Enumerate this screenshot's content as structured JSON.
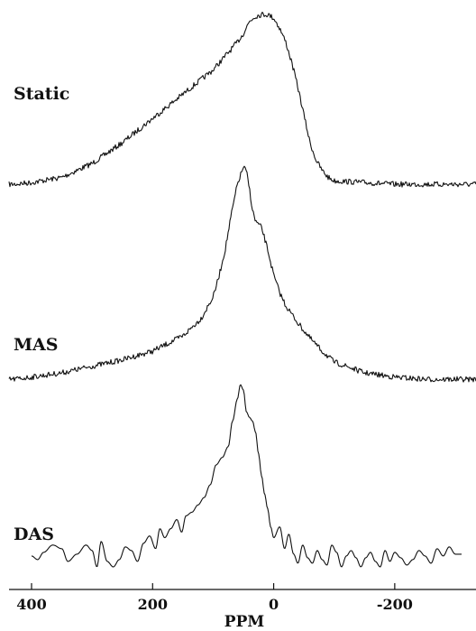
{
  "chart_data": {
    "type": "line",
    "title": "",
    "xlabel": "PPM",
    "ylabel": "",
    "xlim": [
      400,
      -300
    ],
    "x_reversed": true,
    "grid": false,
    "legend": "none",
    "xticks": [
      {
        "value": 400,
        "label": "400"
      },
      {
        "value": 200,
        "label": "200"
      },
      {
        "value": 0,
        "label": "0"
      },
      {
        "value": -200,
        "label": "-200"
      }
    ],
    "series": [
      {
        "name": "Static",
        "x": [
          430,
          400,
          350,
          300,
          250,
          200,
          150,
          100,
          80,
          60,
          50,
          40,
          30,
          20,
          10,
          0,
          -10,
          -20,
          -30,
          -40,
          -50,
          -60,
          -70,
          -80,
          -90,
          -100,
          -150,
          -200,
          -250,
          -300
        ],
        "y": [
          0.02,
          0.03,
          0.06,
          0.14,
          0.26,
          0.4,
          0.54,
          0.68,
          0.76,
          0.84,
          0.89,
          0.96,
          0.99,
          1.0,
          1.0,
          0.98,
          0.92,
          0.84,
          0.72,
          0.58,
          0.42,
          0.26,
          0.16,
          0.1,
          0.06,
          0.04,
          0.03,
          0.02,
          0.02,
          0.02
        ]
      },
      {
        "name": "MAS",
        "x": [
          430,
          400,
          350,
          300,
          250,
          200,
          150,
          120,
          100,
          90,
          80,
          70,
          60,
          50,
          45,
          40,
          35,
          30,
          20,
          10,
          0,
          -10,
          -20,
          -40,
          -60,
          -80,
          -100,
          -150,
          -200,
          -250,
          -300
        ],
        "y": [
          0.02,
          0.03,
          0.05,
          0.08,
          0.11,
          0.15,
          0.22,
          0.3,
          0.4,
          0.5,
          0.62,
          0.78,
          0.92,
          1.0,
          0.98,
          0.9,
          0.8,
          0.75,
          0.72,
          0.62,
          0.5,
          0.42,
          0.36,
          0.28,
          0.21,
          0.15,
          0.1,
          0.05,
          0.03,
          0.02,
          0.02
        ]
      },
      {
        "name": "DAS",
        "x": [
          400,
          390,
          380,
          365,
          350,
          340,
          325,
          310,
          300,
          292,
          285,
          275,
          265,
          255,
          245,
          235,
          225,
          215,
          205,
          195,
          188,
          180,
          170,
          160,
          152,
          145,
          135,
          125,
          115,
          105,
          95,
          85,
          75,
          68,
          60,
          55,
          50,
          45,
          40,
          35,
          30,
          25,
          20,
          15,
          10,
          5,
          0,
          -10,
          -18,
          -25,
          -33,
          -40,
          -48,
          -56,
          -64,
          -72,
          -80,
          -88,
          -96,
          -104,
          -112,
          -120,
          -128,
          -136,
          -144,
          -152,
          -160,
          -168,
          -176,
          -184,
          -192,
          -200,
          -210,
          -220,
          -230,
          -240,
          -250,
          -260,
          -270,
          -280,
          -290,
          -300
        ],
        "y": [
          0.06,
          0.04,
          0.08,
          0.12,
          0.1,
          0.03,
          0.07,
          0.12,
          0.09,
          0.0,
          0.14,
          0.03,
          0.0,
          0.04,
          0.11,
          0.09,
          0.03,
          0.13,
          0.17,
          0.1,
          0.21,
          0.16,
          0.21,
          0.26,
          0.19,
          0.28,
          0.3,
          0.34,
          0.38,
          0.45,
          0.56,
          0.6,
          0.66,
          0.8,
          0.92,
          1.0,
          0.97,
          0.85,
          0.82,
          0.8,
          0.74,
          0.62,
          0.5,
          0.4,
          0.32,
          0.22,
          0.16,
          0.22,
          0.1,
          0.18,
          0.07,
          0.02,
          0.12,
          0.05,
          0.02,
          0.09,
          0.04,
          0.01,
          0.12,
          0.08,
          0.0,
          0.06,
          0.09,
          0.05,
          0.0,
          0.05,
          0.08,
          0.03,
          0.0,
          0.09,
          0.03,
          0.08,
          0.05,
          0.01,
          0.04,
          0.09,
          0.06,
          0.02,
          0.1,
          0.06,
          0.11,
          0.07
        ]
      }
    ]
  }
}
